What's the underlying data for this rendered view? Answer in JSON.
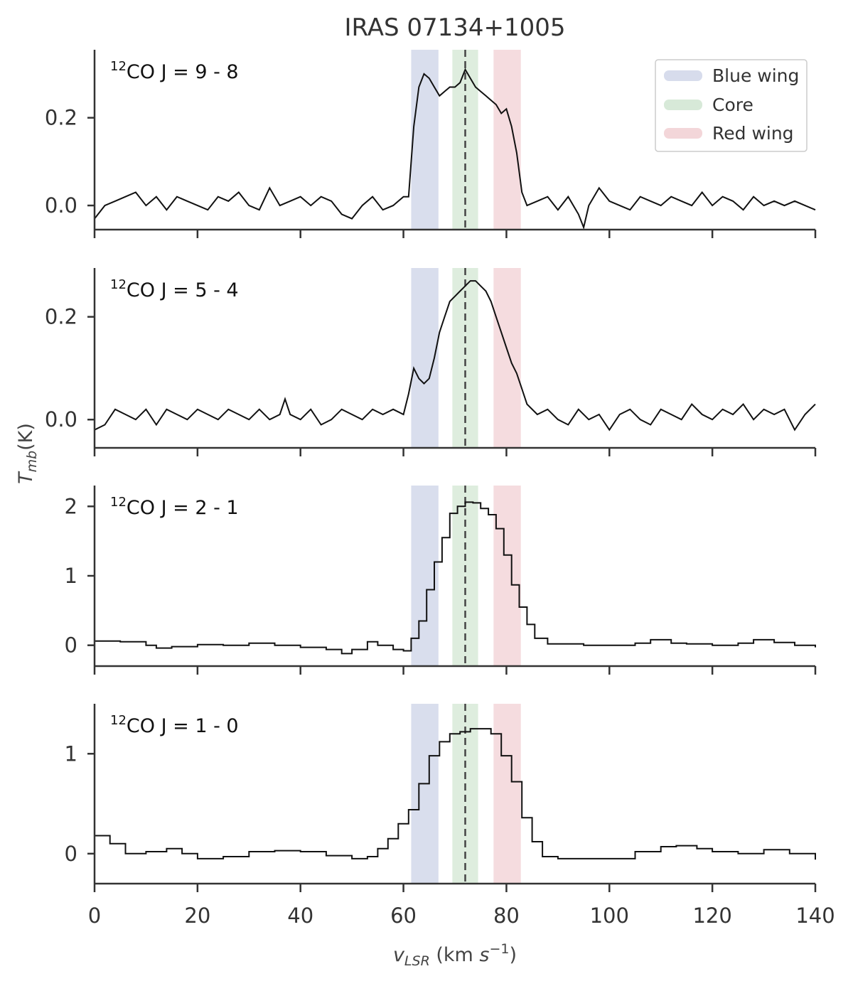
{
  "chart_data": {
    "type": "line",
    "title": "IRAS 07134+1005",
    "xlabel": "v_LSR (km s^-1)",
    "xlabel_parts": {
      "v": "v",
      "sub": "LSR",
      "unit": " (km ",
      "s": "s",
      "exp": "−1",
      "close": ")"
    },
    "ylabel": "T_mb(K)",
    "ylabel_parts": {
      "t": "T",
      "sub": "mb",
      "unit": "(K)"
    },
    "xlim": [
      0,
      140
    ],
    "xticks": [
      0,
      20,
      40,
      60,
      80,
      100,
      120,
      140
    ],
    "xtick_labels": [
      "0",
      "20",
      "40",
      "60",
      "80",
      "100",
      "120",
      "140"
    ],
    "systemic_velocity": 72,
    "regions": [
      {
        "name": "Blue wing",
        "range": [
          61.5,
          66.8
        ],
        "color": "#9aa8d0"
      },
      {
        "name": "Core",
        "range": [
          69.5,
          74.5
        ],
        "color": "#a7cfa9"
      },
      {
        "name": "Red wing",
        "range": [
          77.5,
          82.8
        ],
        "color": "#e4a3aa"
      }
    ],
    "legend": {
      "position": "top-right",
      "entries": [
        "Blue wing",
        "Core",
        "Red wing"
      ]
    },
    "panels": [
      {
        "label_sup": "12",
        "label_text": "CO J = 9 - 8",
        "style": "line",
        "ylim": [
          -0.055,
          0.355
        ],
        "yticks": [
          0.0,
          0.2
        ],
        "ytick_labels": [
          "0.0",
          "0.2"
        ],
        "x": [
          0,
          2,
          4,
          6,
          8,
          10,
          12,
          14,
          16,
          18,
          20,
          22,
          24,
          26,
          28,
          30,
          32,
          34,
          36,
          38,
          40,
          42,
          44,
          46,
          48,
          50,
          52,
          54,
          56,
          58,
          60,
          61,
          62,
          63,
          64,
          65,
          66,
          67,
          68,
          69,
          70,
          71,
          72,
          73,
          74,
          75,
          76,
          77,
          78,
          79,
          80,
          81,
          82,
          83,
          84,
          86,
          88,
          90,
          92,
          94,
          95,
          96,
          98,
          100,
          102,
          104,
          106,
          108,
          110,
          112,
          114,
          116,
          118,
          120,
          122,
          124,
          126,
          128,
          130,
          132,
          134,
          136,
          138,
          140
        ],
        "y": [
          -0.03,
          0.0,
          0.01,
          0.02,
          0.03,
          0.0,
          0.02,
          -0.01,
          0.02,
          0.01,
          0.0,
          -0.01,
          0.02,
          0.01,
          0.03,
          0.0,
          -0.01,
          0.04,
          0.0,
          0.01,
          0.02,
          0.0,
          0.02,
          0.01,
          -0.02,
          -0.03,
          0.0,
          0.02,
          -0.01,
          0.0,
          0.02,
          0.02,
          0.18,
          0.27,
          0.3,
          0.29,
          0.27,
          0.25,
          0.26,
          0.27,
          0.27,
          0.28,
          0.31,
          0.29,
          0.27,
          0.26,
          0.25,
          0.24,
          0.23,
          0.21,
          0.22,
          0.18,
          0.12,
          0.03,
          0.0,
          0.01,
          0.02,
          -0.01,
          0.02,
          -0.02,
          -0.05,
          0.0,
          0.04,
          0.01,
          0.0,
          -0.01,
          0.02,
          0.01,
          0.0,
          0.02,
          0.01,
          0.0,
          0.03,
          0.0,
          0.02,
          0.01,
          -0.01,
          0.02,
          0.0,
          0.01,
          0.0,
          0.01,
          0.0,
          -0.01
        ]
      },
      {
        "label_sup": "12",
        "label_text": "CO J = 5 - 4",
        "style": "line",
        "ylim": [
          -0.055,
          0.295
        ],
        "yticks": [
          0.0,
          0.2
        ],
        "ytick_labels": [
          "0.0",
          "0.2"
        ],
        "x": [
          0,
          2,
          4,
          6,
          8,
          10,
          12,
          14,
          16,
          18,
          20,
          22,
          24,
          26,
          28,
          30,
          32,
          34,
          36,
          37,
          38,
          40,
          42,
          44,
          46,
          48,
          50,
          52,
          54,
          56,
          58,
          60,
          61,
          62,
          63,
          64,
          65,
          66,
          67,
          68,
          69,
          70,
          71,
          72,
          73,
          74,
          75,
          76,
          77,
          78,
          79,
          80,
          81,
          82,
          83,
          84,
          86,
          88,
          90,
          92,
          94,
          96,
          98,
          100,
          102,
          104,
          106,
          108,
          110,
          112,
          114,
          116,
          118,
          120,
          122,
          124,
          126,
          128,
          130,
          132,
          134,
          136,
          138,
          140
        ],
        "y": [
          -0.02,
          -0.01,
          0.02,
          0.01,
          0.0,
          0.02,
          -0.01,
          0.02,
          0.01,
          0.0,
          0.02,
          0.01,
          0.0,
          0.02,
          0.01,
          0.0,
          0.02,
          0.0,
          0.01,
          0.04,
          0.01,
          0.0,
          0.02,
          -0.01,
          0.0,
          0.02,
          0.01,
          0.0,
          0.02,
          0.01,
          0.02,
          0.01,
          0.05,
          0.1,
          0.08,
          0.07,
          0.08,
          0.12,
          0.17,
          0.2,
          0.23,
          0.24,
          0.25,
          0.26,
          0.27,
          0.27,
          0.26,
          0.25,
          0.23,
          0.2,
          0.17,
          0.14,
          0.11,
          0.09,
          0.06,
          0.03,
          0.01,
          0.02,
          0.0,
          -0.01,
          0.02,
          0.0,
          0.01,
          -0.02,
          0.01,
          0.02,
          0.0,
          -0.01,
          0.02,
          0.01,
          0.0,
          0.03,
          0.01,
          0.0,
          0.02,
          0.01,
          0.03,
          0.0,
          0.02,
          0.01,
          0.02,
          -0.02,
          0.01,
          0.03
        ]
      },
      {
        "label_sup": "12",
        "label_text": "CO J = 2 - 1",
        "style": "step",
        "ylim": [
          -0.3,
          2.3
        ],
        "yticks": [
          0,
          1,
          2
        ],
        "ytick_labels": [
          "0",
          "1",
          "2"
        ],
        "x": [
          0,
          5,
          10,
          12,
          15,
          20,
          25,
          30,
          35,
          40,
          45,
          48,
          50,
          53,
          55,
          58,
          60,
          61.5,
          63,
          64.5,
          66,
          67.5,
          69,
          70.5,
          72,
          73.5,
          75,
          76.5,
          78,
          79.5,
          81,
          82.5,
          84,
          85.5,
          88,
          95,
          100,
          105,
          108,
          112,
          115,
          120,
          125,
          128,
          132,
          136,
          140
        ],
        "y": [
          0.06,
          0.05,
          0.0,
          -0.04,
          -0.02,
          0.01,
          0.0,
          0.03,
          0.0,
          -0.03,
          -0.06,
          -0.12,
          -0.06,
          0.05,
          0.0,
          -0.06,
          -0.08,
          0.1,
          0.35,
          0.8,
          1.2,
          1.55,
          1.9,
          2.0,
          2.06,
          2.05,
          1.97,
          1.88,
          1.68,
          1.3,
          0.87,
          0.55,
          0.3,
          0.1,
          0.02,
          0.0,
          0.0,
          0.03,
          0.08,
          0.03,
          0.02,
          0.0,
          0.03,
          0.08,
          0.04,
          0.0,
          -0.03
        ]
      },
      {
        "label_sup": "12",
        "label_text": "CO J = 1 - 0",
        "style": "step",
        "ylim": [
          -0.3,
          1.5
        ],
        "yticks": [
          0,
          1
        ],
        "ytick_labels": [
          "0",
          "1"
        ],
        "x": [
          0,
          3,
          6,
          10,
          14,
          17,
          20,
          25,
          30,
          35,
          40,
          45,
          50,
          53,
          55,
          57,
          59,
          61,
          63,
          65,
          67,
          69,
          71,
          73,
          75,
          77,
          79,
          81,
          83,
          85,
          87,
          90,
          95,
          100,
          105,
          110,
          113,
          117,
          120,
          125,
          130,
          135,
          140
        ],
        "y": [
          0.18,
          0.1,
          0.0,
          0.02,
          0.05,
          0.0,
          -0.05,
          -0.03,
          0.02,
          0.03,
          0.02,
          -0.02,
          -0.05,
          -0.03,
          0.05,
          0.15,
          0.3,
          0.44,
          0.7,
          0.98,
          1.12,
          1.2,
          1.22,
          1.25,
          1.25,
          1.2,
          0.98,
          0.72,
          0.36,
          0.12,
          -0.03,
          -0.05,
          -0.05,
          -0.05,
          0.02,
          0.07,
          0.08,
          0.05,
          0.02,
          0.0,
          0.04,
          0.0,
          -0.06
        ]
      }
    ]
  }
}
